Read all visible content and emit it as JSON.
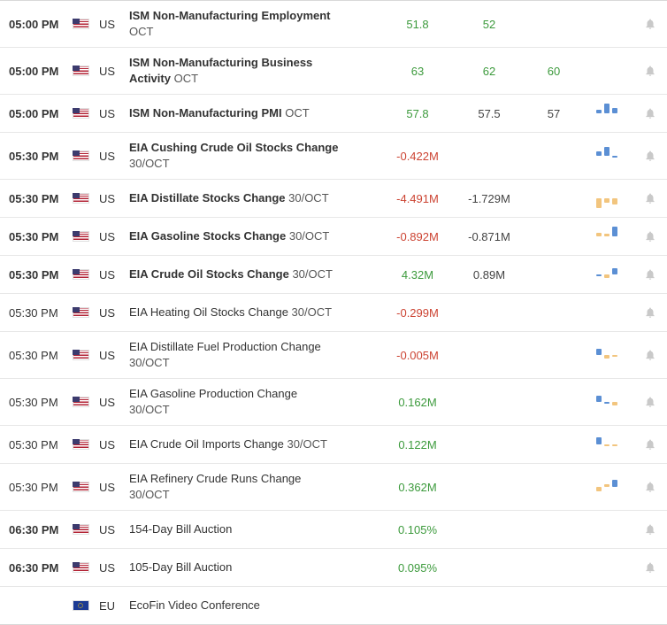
{
  "colors": {
    "green": "#3c9a3c",
    "red": "#cc4433",
    "dark": "#444444",
    "bar_blue": "#5b8fd4",
    "bar_yellow": "#f2c57e"
  },
  "icons": {
    "bell": "bell-icon",
    "flag_us": "us-flag-icon",
    "flag_eu": "eu-flag-icon"
  },
  "rows": [
    {
      "time": "05:00 PM",
      "time_bold": true,
      "flag": "us",
      "country": "US",
      "name": "ISM Non-Manufacturing Employment",
      "name_bold": true,
      "period": "OCT",
      "actual": {
        "t": "51.8",
        "c": "green"
      },
      "previous": {
        "t": "52",
        "c": "green"
      },
      "consensus": null,
      "spark": [],
      "bell": true
    },
    {
      "time": "05:00 PM",
      "time_bold": true,
      "flag": "us",
      "country": "US",
      "name": "ISM Non-Manufacturing Business Activity",
      "name_bold": true,
      "period": "OCT",
      "actual": {
        "t": "63",
        "c": "green"
      },
      "previous": {
        "t": "62",
        "c": "green"
      },
      "consensus": {
        "t": "60",
        "c": "green"
      },
      "spark": [],
      "bell": true
    },
    {
      "time": "05:00 PM",
      "time_bold": true,
      "flag": "us",
      "country": "US",
      "name": "ISM Non-Manufacturing PMI",
      "name_bold": true,
      "period": "OCT",
      "actual": {
        "t": "57.8",
        "c": "green"
      },
      "previous": {
        "t": "57.5",
        "c": "dark"
      },
      "consensus": {
        "t": "57",
        "c": "dark"
      },
      "spark": [
        [
          0.35,
          "blue"
        ],
        [
          0.95,
          "blue"
        ],
        [
          0.5,
          "blue"
        ]
      ],
      "bell": true
    },
    {
      "time": "05:30 PM",
      "time_bold": true,
      "flag": "us",
      "country": "US",
      "name": "EIA Cushing Crude Oil Stocks Change",
      "name_bold": true,
      "period": "30/OCT",
      "actual": {
        "t": "-0.422M",
        "c": "red"
      },
      "previous": null,
      "consensus": null,
      "spark": [
        [
          0.4,
          "blue"
        ],
        [
          0.85,
          "blue"
        ],
        [
          -0.12,
          "blue"
        ]
      ],
      "bell": true
    },
    {
      "time": "05:30 PM",
      "time_bold": true,
      "flag": "us",
      "country": "US",
      "name": "EIA Distillate Stocks Change",
      "name_bold": true,
      "period": "30/OCT",
      "actual": {
        "t": "-4.491M",
        "c": "red"
      },
      "previous": {
        "t": "-1.729M",
        "c": "dark"
      },
      "consensus": null,
      "spark": [
        [
          -0.9,
          "yellow"
        ],
        [
          -0.45,
          "yellow"
        ],
        [
          -0.6,
          "yellow"
        ]
      ],
      "bell": true
    },
    {
      "time": "05:30 PM",
      "time_bold": true,
      "flag": "us",
      "country": "US",
      "name": "EIA Gasoline Stocks Change",
      "name_bold": true,
      "period": "30/OCT",
      "actual": {
        "t": "-0.892M",
        "c": "red"
      },
      "previous": {
        "t": "-0.871M",
        "c": "dark"
      },
      "consensus": null,
      "spark": [
        [
          0.3,
          "yellow"
        ],
        [
          0.22,
          "yellow"
        ],
        [
          0.95,
          "blue"
        ]
      ],
      "bell": true
    },
    {
      "time": "05:30 PM",
      "time_bold": true,
      "flag": "us",
      "country": "US",
      "name": "EIA Crude Oil Stocks Change",
      "name_bold": true,
      "period": "30/OCT",
      "actual": {
        "t": "4.32M",
        "c": "green"
      },
      "previous": {
        "t": "0.89M",
        "c": "dark"
      },
      "consensus": null,
      "spark": [
        [
          -0.1,
          "blue"
        ],
        [
          -0.35,
          "yellow"
        ],
        [
          0.6,
          "blue"
        ]
      ],
      "bell": true
    },
    {
      "time": "05:30 PM",
      "time_bold": false,
      "flag": "us",
      "country": "US",
      "name": "EIA Heating Oil Stocks Change",
      "name_bold": false,
      "period": "30/OCT",
      "actual": {
        "t": "-0.299M",
        "c": "red"
      },
      "previous": null,
      "consensus": null,
      "spark": [],
      "bell": true
    },
    {
      "time": "05:30 PM",
      "time_bold": false,
      "flag": "us",
      "country": "US",
      "name": "EIA Distillate Fuel Production Change",
      "name_bold": false,
      "period": "30/OCT",
      "actual": {
        "t": "-0.005M",
        "c": "red"
      },
      "previous": null,
      "consensus": null,
      "spark": [
        [
          0.6,
          "blue"
        ],
        [
          -0.35,
          "yellow"
        ],
        [
          -0.1,
          "yellow"
        ]
      ],
      "bell": true
    },
    {
      "time": "05:30 PM",
      "time_bold": false,
      "flag": "us",
      "country": "US",
      "name": "EIA Gasoline Production Change",
      "name_bold": false,
      "period": "30/OCT",
      "actual": {
        "t": "0.162M",
        "c": "green"
      },
      "previous": null,
      "consensus": null,
      "spark": [
        [
          0.55,
          "blue"
        ],
        [
          -0.1,
          "blue"
        ],
        [
          -0.3,
          "yellow"
        ]
      ],
      "bell": true
    },
    {
      "time": "05:30 PM",
      "time_bold": false,
      "flag": "us",
      "country": "US",
      "name": "EIA Crude Oil Imports Change",
      "name_bold": false,
      "period": "30/OCT",
      "actual": {
        "t": "0.122M",
        "c": "green"
      },
      "previous": null,
      "consensus": null,
      "spark": [
        [
          0.7,
          "blue"
        ],
        [
          -0.1,
          "yellow"
        ],
        [
          -0.1,
          "yellow"
        ]
      ],
      "bell": true
    },
    {
      "time": "05:30 PM",
      "time_bold": false,
      "flag": "us",
      "country": "US",
      "name": "EIA Refinery Crude Runs Change",
      "name_bold": false,
      "period": "30/OCT",
      "actual": {
        "t": "0.362M",
        "c": "green"
      },
      "previous": null,
      "consensus": null,
      "spark": [
        [
          -0.4,
          "yellow"
        ],
        [
          0.25,
          "yellow"
        ],
        [
          0.7,
          "blue"
        ]
      ],
      "bell": true
    },
    {
      "time": "06:30 PM",
      "time_bold": true,
      "flag": "us",
      "country": "US",
      "name": "154-Day Bill Auction",
      "name_bold": false,
      "period": "",
      "actual": {
        "t": "0.105%",
        "c": "green"
      },
      "previous": null,
      "consensus": null,
      "spark": [],
      "bell": true
    },
    {
      "time": "06:30 PM",
      "time_bold": true,
      "flag": "us",
      "country": "US",
      "name": "105-Day Bill Auction",
      "name_bold": false,
      "period": "",
      "actual": {
        "t": "0.095%",
        "c": "green"
      },
      "previous": null,
      "consensus": null,
      "spark": [],
      "bell": true
    },
    {
      "time": "",
      "time_bold": false,
      "flag": "eu",
      "country": "EU",
      "name": "EcoFin Video Conference",
      "name_bold": false,
      "period": "",
      "actual": null,
      "previous": null,
      "consensus": null,
      "spark": [],
      "bell": false
    }
  ]
}
